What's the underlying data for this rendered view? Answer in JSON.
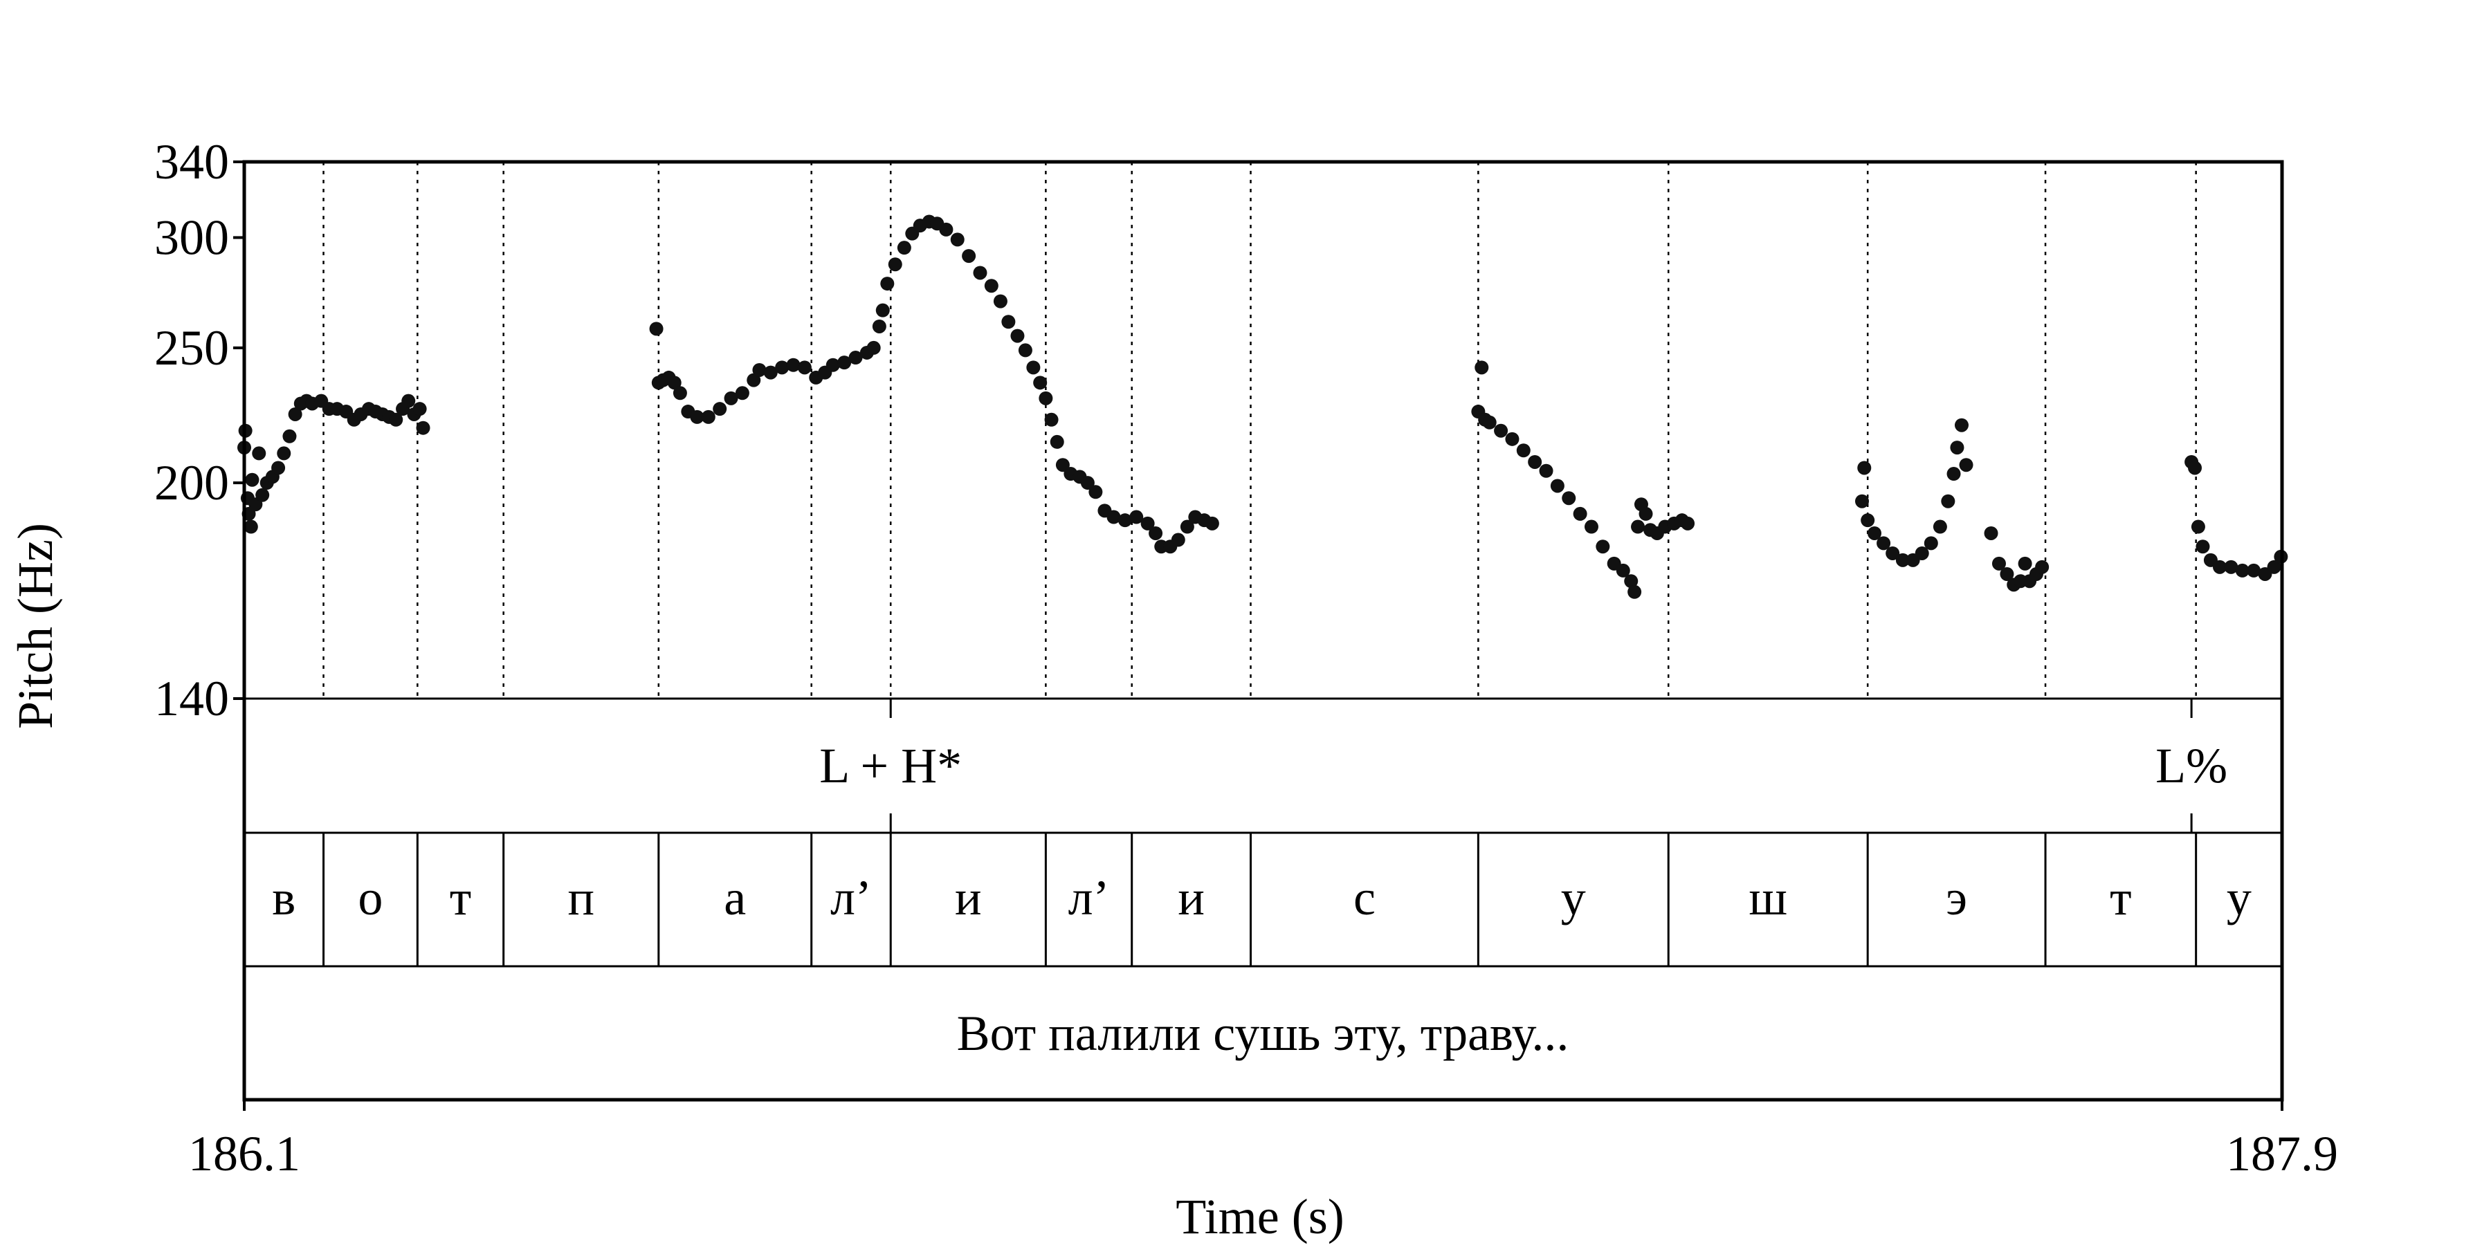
{
  "chart_data": {
    "type": "scatter",
    "xlabel": "Time (s)",
    "ylabel": "Pitch (Hz)",
    "xlim": [
      186.1,
      187.9
    ],
    "ylim": [
      140,
      340
    ],
    "y_scale": "log",
    "x_tick_labels": [
      "186.1",
      "187.9"
    ],
    "y_ticks": [
      140,
      200,
      250,
      300,
      340
    ],
    "y_tick_labels": [
      "140",
      "200",
      "250",
      "300",
      "340"
    ],
    "grid": "dotted vertical lines at segment boundaries",
    "marker_color": "#111111",
    "pitch_track": {
      "segments": [
        {
          "points": [
            [
              186.1,
              212
            ],
            [
              186.101,
              218
            ],
            [
              186.103,
              195
            ],
            [
              186.104,
              190
            ],
            [
              186.106,
              186
            ],
            [
              186.107,
              201
            ],
            [
              186.11,
              193
            ],
            [
              186.113,
              210
            ],
            [
              186.116,
              196
            ],
            [
              186.12,
              200
            ],
            [
              186.125,
              202
            ],
            [
              186.13,
              205
            ],
            [
              186.135,
              210
            ],
            [
              186.14,
              216
            ],
            [
              186.145,
              224
            ],
            [
              186.15,
              228
            ],
            [
              186.155,
              229
            ],
            [
              186.16,
              228
            ],
            [
              186.168,
              229
            ],
            [
              186.175,
              226
            ],
            [
              186.182,
              226
            ],
            [
              186.19,
              225
            ],
            [
              186.197,
              222
            ],
            [
              186.203,
              224
            ],
            [
              186.21,
              226
            ],
            [
              186.216,
              225
            ],
            [
              186.222,
              224
            ],
            [
              186.228,
              223
            ],
            [
              186.234,
              222
            ],
            [
              186.24,
              226
            ],
            [
              186.245,
              229
            ],
            [
              186.25,
              224
            ],
            [
              186.255,
              226
            ],
            [
              186.258,
              219
            ]
          ]
        },
        {
          "points": [
            [
              186.464,
              258
            ],
            [
              186.466,
              236
            ],
            [
              186.47,
              237
            ],
            [
              186.475,
              238
            ],
            [
              186.48,
              236
            ],
            [
              186.485,
              232
            ],
            [
              186.492,
              225
            ],
            [
              186.5,
              223
            ],
            [
              186.51,
              223
            ],
            [
              186.52,
              226
            ],
            [
              186.53,
              230
            ],
            [
              186.54,
              232
            ],
            [
              186.55,
              237
            ],
            [
              186.555,
              241
            ],
            [
              186.565,
              240
            ],
            [
              186.575,
              242
            ],
            [
              186.585,
              243
            ],
            [
              186.595,
              242
            ],
            [
              186.605,
              238
            ],
            [
              186.613,
              240
            ],
            [
              186.62,
              243
            ],
            [
              186.63,
              244
            ],
            [
              186.64,
              246
            ],
            [
              186.65,
              248
            ],
            [
              186.656,
              250
            ],
            [
              186.661,
              259
            ],
            [
              186.664,
              266
            ],
            [
              186.668,
              278
            ],
            [
              186.675,
              287
            ],
            [
              186.683,
              295
            ],
            [
              186.69,
              302
            ],
            [
              186.697,
              306
            ],
            [
              186.705,
              308
            ],
            [
              186.712,
              307
            ],
            [
              186.72,
              304
            ],
            [
              186.73,
              299
            ],
            [
              186.74,
              291
            ],
            [
              186.75,
              283
            ],
            [
              186.76,
              277
            ],
            [
              186.768,
              270
            ],
            [
              186.775,
              261
            ],
            [
              186.783,
              255
            ],
            [
              186.79,
              249
            ],
            [
              186.797,
              242
            ],
            [
              186.803,
              236
            ],
            [
              186.808,
              230
            ],
            [
              186.813,
              222
            ],
            [
              186.818,
              214
            ],
            [
              186.823,
              206
            ],
            [
              186.83,
              203
            ],
            [
              186.838,
              202
            ],
            [
              186.845,
              200
            ],
            [
              186.852,
              197
            ],
            [
              186.86,
              191
            ],
            [
              186.868,
              189
            ],
            [
              186.878,
              188
            ],
            [
              186.888,
              189
            ],
            [
              186.898,
              187
            ],
            [
              186.905,
              184
            ],
            [
              186.91,
              180
            ],
            [
              186.918,
              180
            ],
            [
              186.925,
              182
            ],
            [
              186.933,
              186
            ],
            [
              186.94,
              189
            ],
            [
              186.948,
              188
            ],
            [
              186.955,
              187
            ]
          ]
        },
        {
          "points": [
            [
              187.19,
              225
            ],
            [
              187.193,
              242
            ],
            [
              187.196,
              222
            ],
            [
              187.2,
              221
            ],
            [
              187.21,
              218
            ],
            [
              187.22,
              215
            ],
            [
              187.23,
              211
            ],
            [
              187.24,
              207
            ],
            [
              187.25,
              204
            ],
            [
              187.26,
              199
            ],
            [
              187.27,
              195
            ],
            [
              187.28,
              190
            ],
            [
              187.29,
              186
            ],
            [
              187.3,
              180
            ],
            [
              187.31,
              175
            ],
            [
              187.318,
              173
            ],
            [
              187.325,
              170
            ],
            [
              187.328,
              167
            ],
            [
              187.331,
              186
            ],
            [
              187.334,
              193
            ],
            [
              187.338,
              190
            ],
            [
              187.342,
              185
            ],
            [
              187.348,
              184
            ],
            [
              187.355,
              186
            ],
            [
              187.363,
              187
            ],
            [
              187.37,
              188
            ],
            [
              187.375,
              187
            ]
          ]
        },
        {
          "points": [
            [
              187.529,
              194
            ],
            [
              187.531,
              205
            ],
            [
              187.534,
              188
            ],
            [
              187.54,
              184
            ],
            [
              187.548,
              181
            ],
            [
              187.556,
              178
            ],
            [
              187.565,
              176
            ],
            [
              187.574,
              176
            ],
            [
              187.582,
              178
            ],
            [
              187.59,
              181
            ],
            [
              187.598,
              186
            ],
            [
              187.605,
              194
            ],
            [
              187.61,
              203
            ],
            [
              187.613,
              212
            ],
            [
              187.617,
              220
            ],
            [
              187.621,
              206
            ]
          ]
        },
        {
          "points": [
            [
              187.643,
              184
            ],
            [
              187.65,
              175
            ],
            [
              187.657,
              172
            ],
            [
              187.663,
              169
            ],
            [
              187.669,
              170
            ],
            [
              187.673,
              175
            ],
            [
              187.677,
              170
            ],
            [
              187.683,
              172
            ],
            [
              187.688,
              174
            ]
          ]
        },
        {
          "points": [
            [
              187.82,
              207
            ],
            [
              187.823,
              205
            ],
            [
              187.826,
              186
            ],
            [
              187.83,
              180
            ],
            [
              187.837,
              176
            ],
            [
              187.845,
              174
            ],
            [
              187.855,
              174
            ],
            [
              187.865,
              173
            ],
            [
              187.875,
              173
            ],
            [
              187.885,
              172
            ],
            [
              187.893,
              174
            ],
            [
              187.899,
              177
            ]
          ]
        }
      ]
    }
  },
  "tones_tier": {
    "boundaries": [
      186.671,
      187.82
    ],
    "labels": [
      {
        "t": 186.671,
        "text": "L + H*"
      },
      {
        "t": 187.82,
        "text": "L%"
      }
    ]
  },
  "segments_tier": {
    "boundaries": [
      186.1,
      186.17,
      186.253,
      186.329,
      186.466,
      186.601,
      186.671,
      186.808,
      186.884,
      186.989,
      187.19,
      187.358,
      187.534,
      187.691,
      187.824,
      187.9
    ],
    "labels": [
      "в",
      "о",
      "т",
      "п",
      "а",
      "л’",
      "и",
      "л’",
      "и",
      "с",
      "у",
      "ш",
      "э",
      "т",
      "у"
    ]
  },
  "words_tier": {
    "text": "Вот палили сушь эту, траву..."
  }
}
